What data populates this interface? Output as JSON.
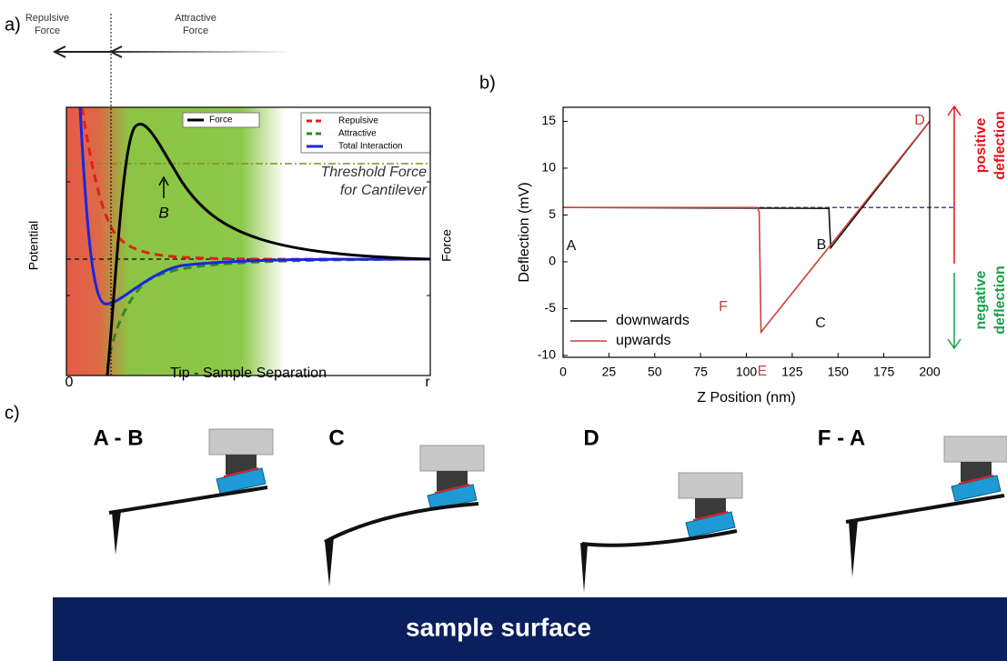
{
  "panel_labels": [
    "a)",
    "b)",
    "c)"
  ],
  "panel_a": {
    "regions": [
      [
        "Repulsive",
        "Force"
      ],
      [
        "Attractive",
        "Force"
      ]
    ],
    "legend": [
      "Force",
      "Repulsive",
      "Attractive",
      "Total Interaction"
    ],
    "threshold": [
      "Threshold Force",
      "for Cantilever"
    ],
    "point_label": "B",
    "y_label_left": "Potential",
    "y_label_right": "Force",
    "x_label": "Tip - Sample Separation",
    "x_start": "0",
    "x_end": "r"
  },
  "chart_data": {
    "type": "line",
    "x_label": "Z Position (nm)",
    "y_label": "Deflection (mV)",
    "xlim": [
      0,
      200
    ],
    "xticks": [
      0,
      25,
      50,
      75,
      100,
      125,
      150,
      175,
      200
    ],
    "ylim": [
      -10.2,
      16.5
    ],
    "yticks": [
      -10,
      -5,
      0,
      5,
      10,
      15
    ],
    "series": [
      {
        "name": "downwards",
        "color": "#111111",
        "x": [
          0,
          145,
          146,
          200
        ],
        "values": [
          5.8,
          5.7,
          1.5,
          15
        ]
      },
      {
        "name": "upwards",
        "color": "#c8413f",
        "x": [
          0,
          106,
          107,
          108,
          200
        ],
        "values": [
          5.8,
          5.8,
          5.3,
          -7.5,
          15
        ]
      }
    ],
    "reference_line": 5.8,
    "reference_color": "#5b3f9e",
    "annotations": [
      "A",
      "B",
      "C",
      "D",
      "E",
      "F"
    ],
    "legend_position": "lower left",
    "side_labels": [
      {
        "lines": [
          "positive",
          "deflection"
        ],
        "color": "#e3141c"
      },
      {
        "lines": [
          "negative",
          "deflection"
        ],
        "color": "#18a04a"
      }
    ]
  },
  "panel_c": {
    "steps": [
      "A - B",
      "C",
      "D",
      "F - A"
    ],
    "surface": "sample surface"
  }
}
